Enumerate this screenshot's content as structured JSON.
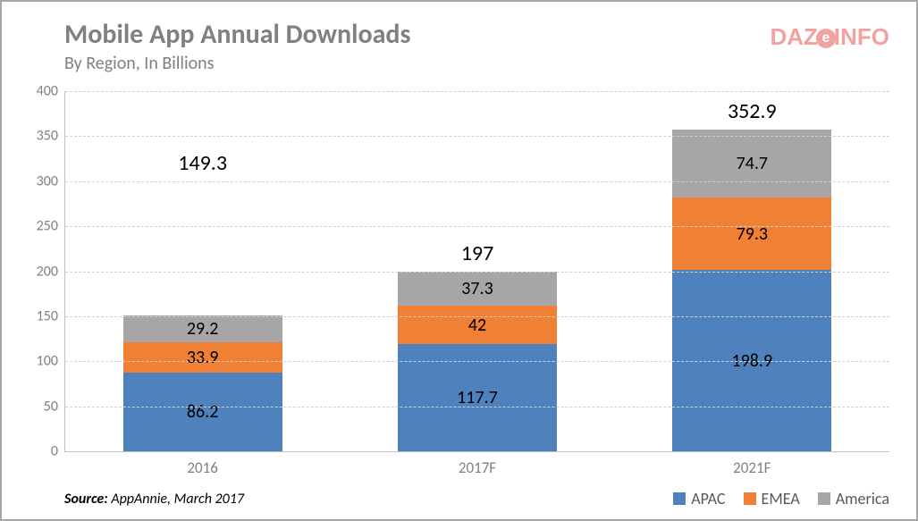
{
  "title": "Mobile App Annual Downloads",
  "subtitle": "By Region, In Billions",
  "logo": {
    "text1": "DAZ",
    "e": "e",
    "text2": "INFO",
    "color": "#f3a2a2"
  },
  "source_label": "Source:",
  "source_text": " AppAnnie, March 2017",
  "chart": {
    "type": "stacked-bar",
    "background_color": "#ffffff",
    "grid_color": "#d0d0d0",
    "axis_color": "#bfbfbf",
    "text_color": "#808080",
    "label_fontsize": 16,
    "total_fontsize": 24,
    "segment_fontsize": 20,
    "ylim": [
      0,
      400
    ],
    "ytick_step": 50,
    "categories": [
      "2016",
      "2017F",
      "2021F"
    ],
    "series": [
      {
        "name": "APAC",
        "color": "#4f81bd",
        "values": [
          86.2,
          117.7,
          198.9
        ]
      },
      {
        "name": "EMEA",
        "color": "#f08033",
        "values": [
          33.9,
          42,
          79.3
        ]
      },
      {
        "name": "America",
        "color": "#a6a6a6",
        "values": [
          29.2,
          37.3,
          74.7
        ]
      }
    ],
    "totals": [
      149.3,
      197,
      352.9
    ],
    "total_label_offsets": [
      150,
      0,
      0
    ]
  }
}
